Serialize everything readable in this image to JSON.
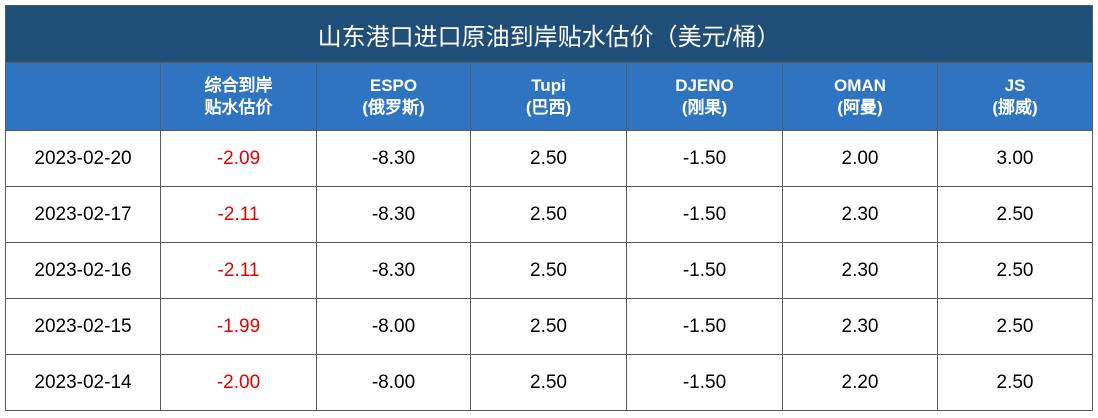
{
  "title": "山东港口进口原油到岸贴水估价（美元/桶）",
  "table": {
    "header": [
      [
        "综合到岸",
        "贴水估价"
      ],
      [
        "ESPO",
        "(俄罗斯)"
      ],
      [
        "Tupi",
        "(巴西)"
      ],
      [
        "DJENO",
        "(刚果)"
      ],
      [
        "OMAN",
        "(阿曼)"
      ],
      [
        "JS",
        "(挪威)"
      ]
    ],
    "rows": [
      [
        "2023-02-20",
        "-2.09",
        "-8.30",
        "2.50",
        "-1.50",
        "2.00",
        "3.00"
      ],
      [
        "2023-02-17",
        "-2.11",
        "-8.30",
        "2.50",
        "-1.50",
        "2.30",
        "2.50"
      ],
      [
        "2023-02-16",
        "-2.11",
        "-8.30",
        "2.50",
        "-1.50",
        "2.30",
        "2.50"
      ],
      [
        "2023-02-15",
        "-1.99",
        "-8.00",
        "2.50",
        "-1.50",
        "2.30",
        "2.50"
      ],
      [
        "2023-02-14",
        "-2.00",
        "-8.00",
        "2.50",
        "-1.50",
        "2.20",
        "2.50"
      ]
    ]
  }
}
